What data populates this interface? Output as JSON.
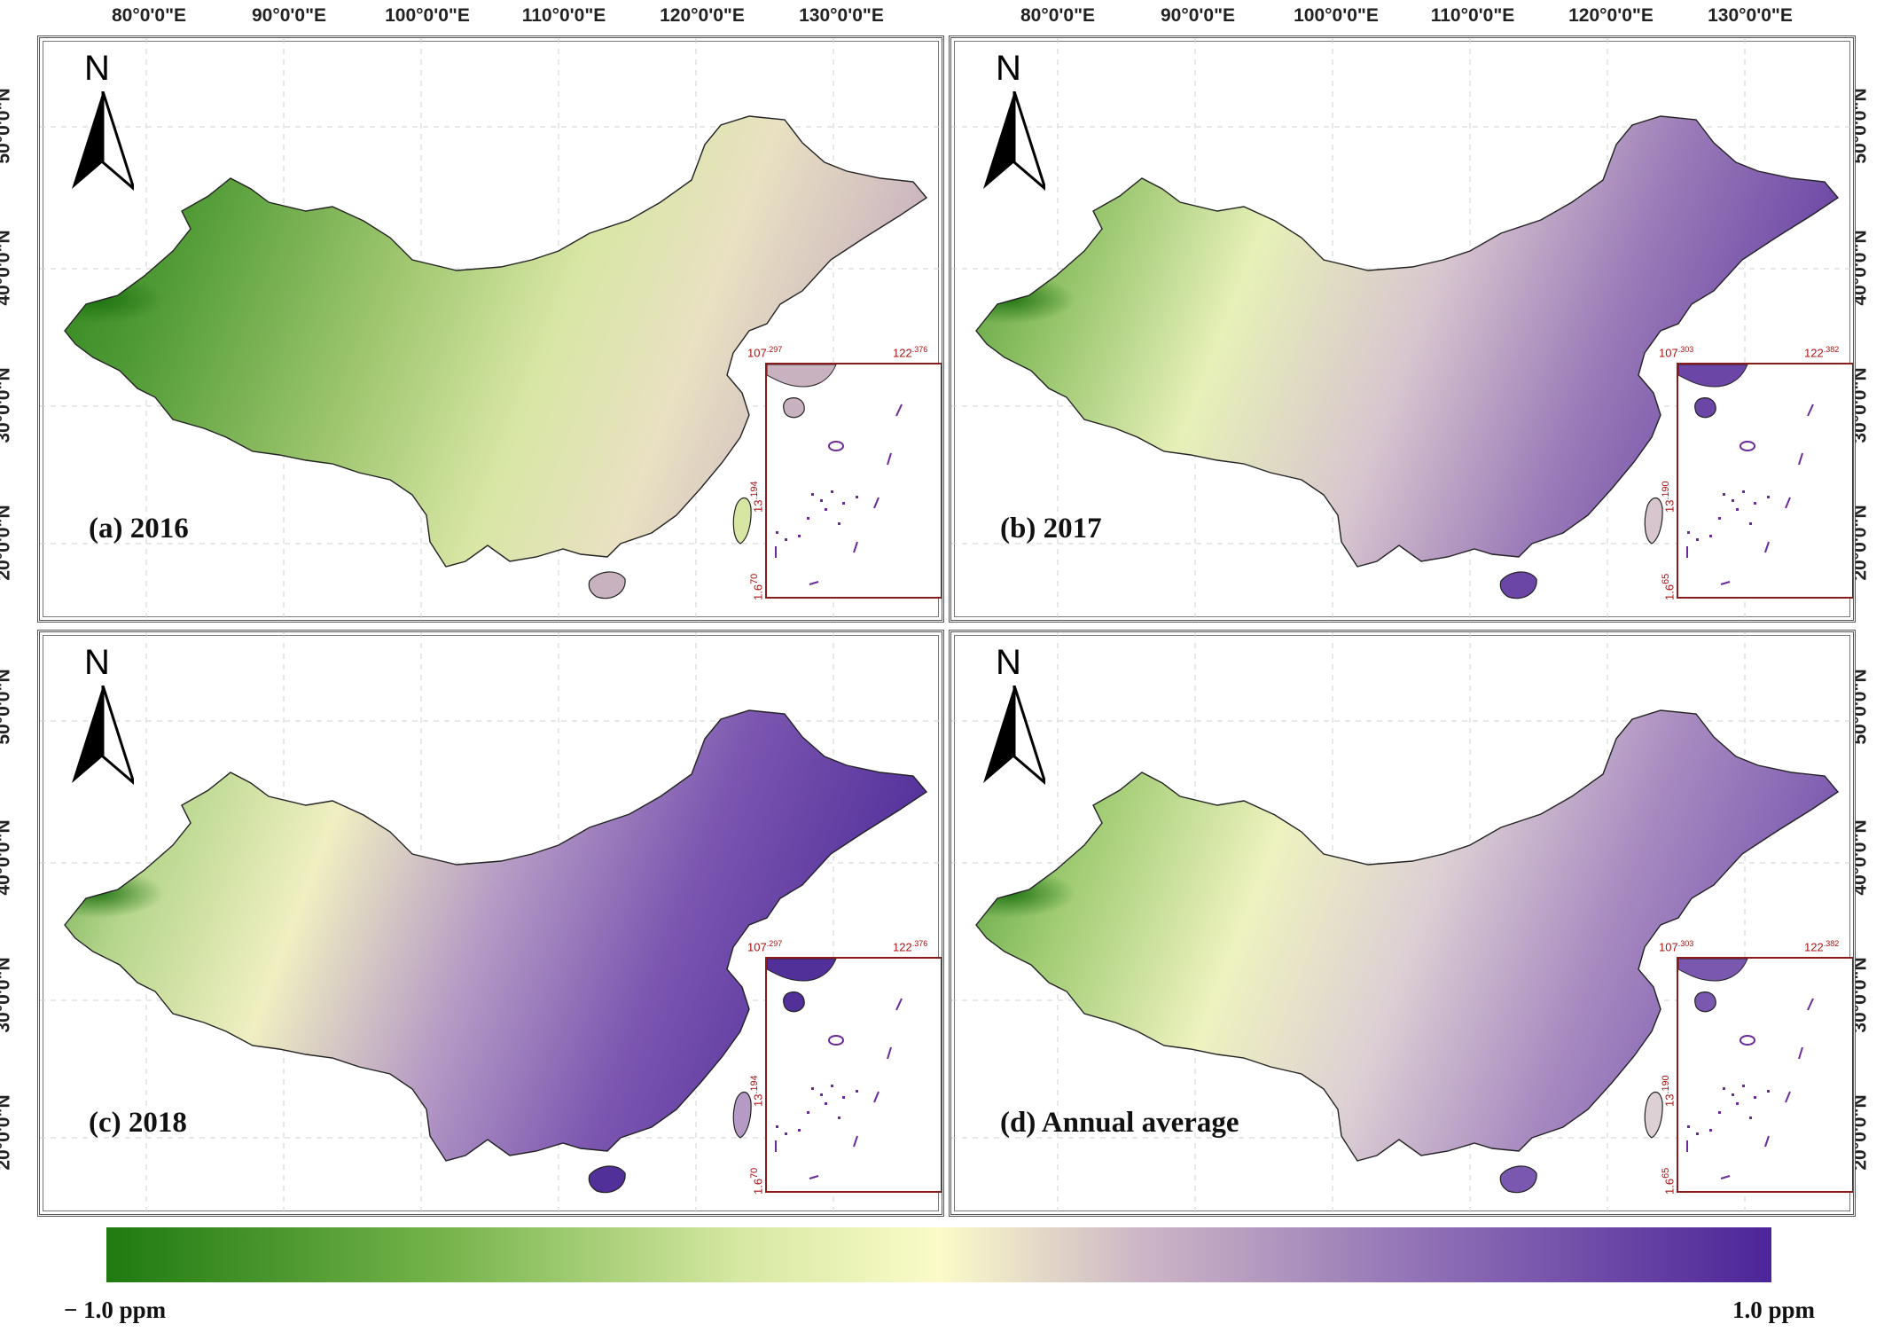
{
  "figure": {
    "colors": {
      "green": "#2f7d1f",
      "mid": "#f5f5c8",
      "purple": "#4a2a8f",
      "frame": "#555555",
      "inset_border": "#8b1a1a"
    },
    "longitude_labels": [
      "80°0'0\"E",
      "90°0'0\"E",
      "100°0'0\"E",
      "110°0'0\"E",
      "120°0'0\"E",
      "130°0'0\"E"
    ],
    "latitude_labels": [
      "50°0'0\"N",
      "40°0'0\"N",
      "30°0'0\"N",
      "20°0'0\"N"
    ],
    "north_symbol": "N",
    "panels": [
      {
        "label": "(a) 2016",
        "scheme": "green",
        "inset": {
          "x_left": "107",
          "x_left_sup": ".297",
          "x_right": "122",
          "x_right_sup": ".376",
          "y_mid": "13",
          "y_mid_sup": ".194",
          "y_low": "1.6",
          "y_low_sup": "70"
        }
      },
      {
        "label": "(b) 2017",
        "scheme": "mixed_purple",
        "inset": {
          "x_left": "107",
          "x_left_sup": ".303",
          "x_right": "122",
          "x_right_sup": ".382",
          "y_mid": "13",
          "y_mid_sup": ".190",
          "y_low": "1.6",
          "y_low_sup": "65"
        }
      },
      {
        "label": "(c) 2018",
        "scheme": "purple",
        "inset": {
          "x_left": "107",
          "x_left_sup": ".297",
          "x_right": "122",
          "x_right_sup": ".376",
          "y_mid": "13",
          "y_mid_sup": ".194",
          "y_low": "1.6",
          "y_low_sup": "70"
        }
      },
      {
        "label": "(d) Annual average",
        "scheme": "mixed",
        "inset": {
          "x_left": "107",
          "x_left_sup": ".303",
          "x_right": "122",
          "x_right_sup": ".382",
          "y_mid": "13",
          "y_mid_sup": ".190",
          "y_low": "1.6",
          "y_low_sup": "65"
        }
      }
    ],
    "colorbar": {
      "min_label": "− 1.0 ppm",
      "max_label": "1.0 ppm"
    }
  }
}
